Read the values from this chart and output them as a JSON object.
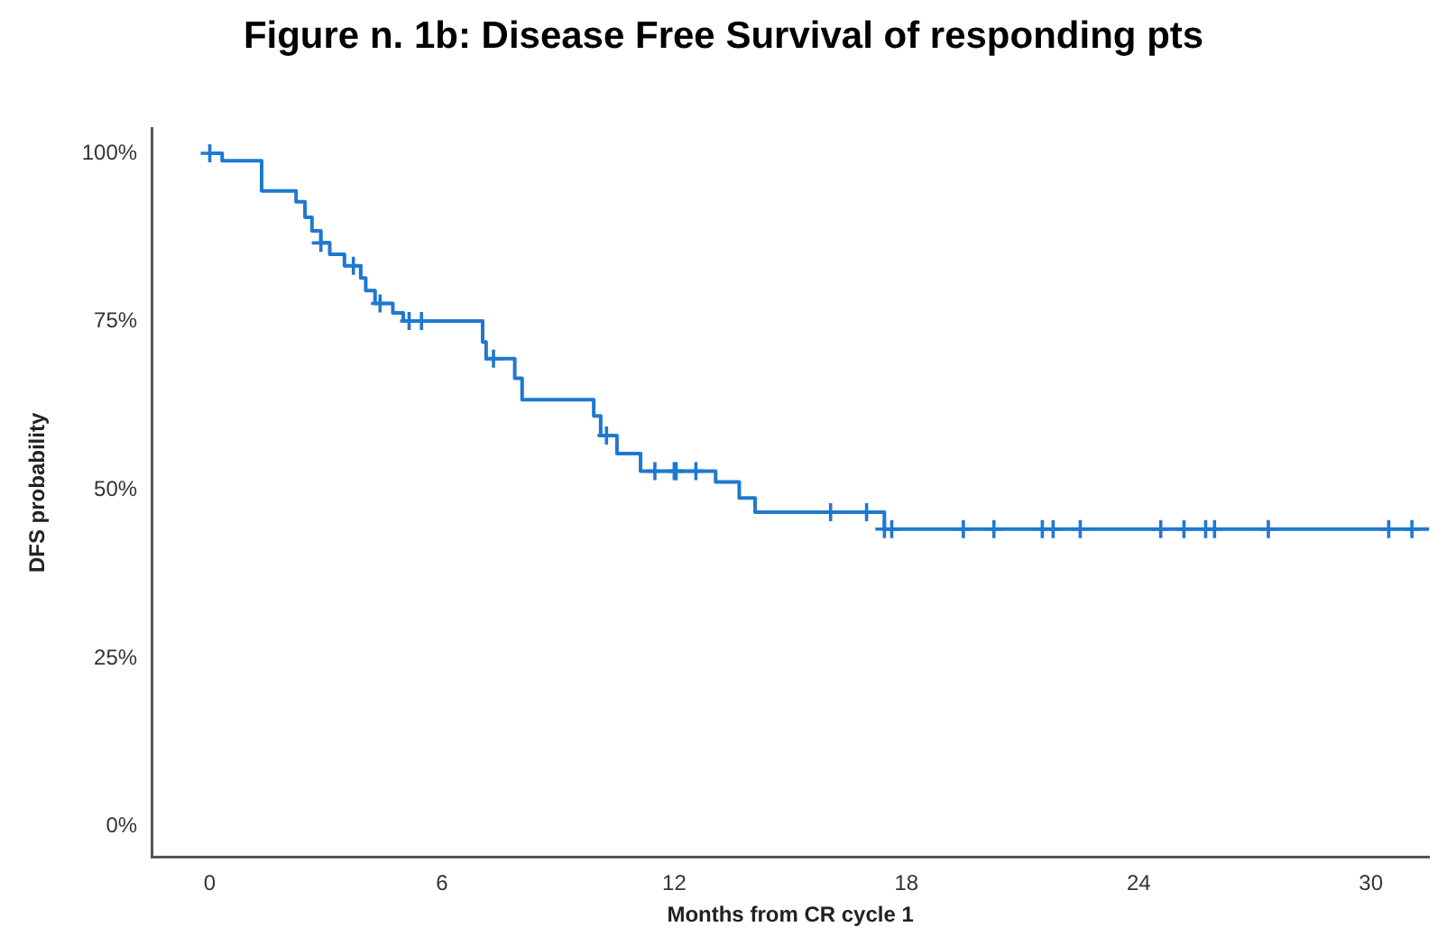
{
  "chart_data": {
    "type": "step",
    "title": "Figure n. 1b: Disease Free Survival of responding pts",
    "xlabel": "Months from CR cycle 1",
    "ylabel": "DFS probability",
    "xlim": [
      -1.5,
      31.5
    ],
    "xticks": [
      0,
      6,
      12,
      18,
      24,
      30
    ],
    "ylim": [
      -4.5,
      103.7
    ],
    "yticks": [
      {
        "value": 0,
        "label": "0%"
      },
      {
        "value": 25,
        "label": "25%"
      },
      {
        "value": 50,
        "label": "50%"
      },
      {
        "value": 75,
        "label": "75%"
      },
      {
        "value": 100,
        "label": "100%"
      }
    ],
    "grid": false,
    "legend": false,
    "series": [
      {
        "color": "#1f78d1",
        "marker": "none",
        "x": [
          0,
          0.32,
          1.34,
          2.23,
          2.46,
          2.64,
          2.87,
          3.1,
          3.48,
          3.9,
          4.03,
          4.27,
          4.73,
          5.0,
          7.05,
          7.14,
          7.88,
          8.07,
          9.92,
          10.1,
          10.52,
          11.13,
          13.07,
          13.68,
          14.09,
          17.43,
          31.5
        ],
        "values": [
          100,
          98.9,
          94.4,
          92.8,
          90.5,
          88.5,
          86.7,
          85.0,
          83.3,
          81.5,
          79.6,
          77.7,
          76.3,
          75.1,
          72.0,
          69.5,
          66.6,
          63.4,
          61.0,
          58.1,
          55.4,
          52.8,
          51.2,
          48.8,
          46.7,
          44.2,
          44.2
        ]
      },
      {
        "type": "scatter",
        "color": "#1f78d1",
        "marker": "cross",
        "x": [
          0,
          2.87,
          3.71,
          4.4,
          5.15,
          5.47,
          7.33,
          10.25,
          11.5,
          12.0,
          12.05,
          12.56,
          16.04,
          16.97,
          17.43,
          17.62,
          19.47,
          20.26,
          21.51,
          21.79,
          22.49,
          24.57,
          25.17,
          25.73,
          25.96,
          27.35,
          30.46,
          31.06
        ],
        "values": [
          100,
          86.7,
          83.3,
          77.7,
          75.1,
          75.1,
          69.5,
          58.1,
          52.8,
          52.8,
          52.8,
          52.8,
          46.7,
          46.7,
          44.2,
          44.2,
          44.2,
          44.2,
          44.2,
          44.2,
          44.2,
          44.2,
          44.2,
          44.2,
          44.2,
          44.2,
          44.2,
          44.2
        ]
      }
    ]
  }
}
